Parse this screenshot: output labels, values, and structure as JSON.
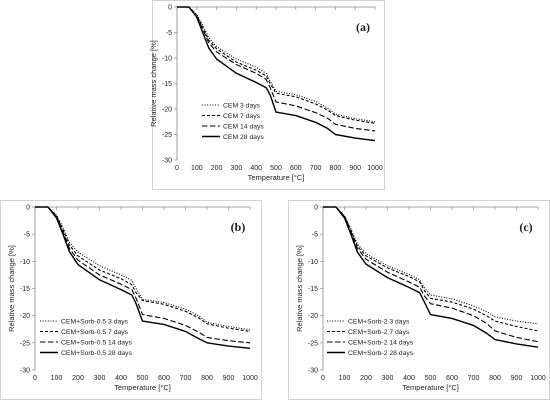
{
  "chart_data": [
    {
      "type": "line",
      "panel_label": "(a)",
      "xlabel": "Temperature [°C]",
      "ylabel": "Relative mass change [%]",
      "xlim": [
        0,
        1000
      ],
      "ylim": [
        -30,
        0
      ],
      "xticks": [
        0,
        100,
        200,
        300,
        400,
        500,
        600,
        700,
        800,
        900,
        1000
      ],
      "yticks": [
        0,
        -5,
        -10,
        -15,
        -20,
        -25,
        -30
      ],
      "grid": false,
      "legend_position": "bottom-right",
      "series": [
        {
          "name": "CEM 3 days",
          "style": "dotted",
          "x": [
            0,
            60,
            100,
            130,
            160,
            200,
            300,
            400,
            450,
            470,
            500,
            600,
            700,
            760,
            800,
            900,
            1000
          ],
          "y": [
            0,
            0,
            -1.5,
            -3.5,
            -6,
            -7.8,
            -10.2,
            -11.8,
            -13,
            -14.5,
            -16.5,
            -17.2,
            -18.5,
            -19.8,
            -21,
            -21.9,
            -22.5
          ]
        },
        {
          "name": "CEM 7 days",
          "style": "short-dash",
          "x": [
            0,
            60,
            100,
            130,
            160,
            200,
            300,
            400,
            450,
            470,
            500,
            600,
            700,
            760,
            800,
            900,
            1000
          ],
          "y": [
            0,
            0,
            -1.6,
            -4,
            -6.5,
            -8.2,
            -10.8,
            -12.4,
            -13.5,
            -15,
            -16.9,
            -17.6,
            -19,
            -20.2,
            -21.3,
            -22.2,
            -22.8
          ]
        },
        {
          "name": "CEM 14 days",
          "style": "long-dash",
          "x": [
            0,
            60,
            100,
            130,
            160,
            200,
            300,
            400,
            450,
            470,
            500,
            600,
            700,
            760,
            800,
            900,
            1000
          ],
          "y": [
            0,
            0,
            -1.8,
            -4.3,
            -7,
            -8.8,
            -11.3,
            -13,
            -14.2,
            -15.8,
            -18.6,
            -19.4,
            -20.7,
            -21.8,
            -23,
            -23.8,
            -24.3
          ]
        },
        {
          "name": "CEM 28 days",
          "style": "solid",
          "x": [
            0,
            60,
            100,
            130,
            160,
            200,
            300,
            400,
            450,
            470,
            500,
            600,
            700,
            760,
            800,
            900,
            1000
          ],
          "y": [
            0,
            0,
            -2,
            -5,
            -8,
            -10.2,
            -13,
            -14.8,
            -15.8,
            -17.2,
            -20.6,
            -21.3,
            -22.6,
            -23.8,
            -25,
            -25.7,
            -26.2
          ]
        }
      ]
    },
    {
      "type": "line",
      "panel_label": "(b)",
      "xlabel": "Temperature [°C]",
      "ylabel": "Relative mass change [%]",
      "xlim": [
        0,
        1000
      ],
      "ylim": [
        -30,
        0
      ],
      "xticks": [
        0,
        100,
        200,
        300,
        400,
        500,
        600,
        700,
        800,
        900,
        1000
      ],
      "yticks": [
        0,
        -5,
        -10,
        -15,
        -20,
        -25,
        -30
      ],
      "grid": false,
      "legend_position": "bottom-left",
      "series": [
        {
          "name": "CEM+Sorb-0.5 3 days",
          "style": "dotted",
          "x": [
            0,
            60,
            100,
            130,
            160,
            200,
            300,
            400,
            450,
            470,
            500,
            600,
            700,
            760,
            800,
            900,
            1000
          ],
          "y": [
            0,
            0,
            -1.5,
            -3.8,
            -6.5,
            -8.3,
            -10.8,
            -12.5,
            -13.5,
            -15,
            -17,
            -17.6,
            -18.8,
            -20,
            -21.2,
            -22,
            -22.6
          ]
        },
        {
          "name": "CEM+Sorb-0.5 7 days",
          "style": "short-dash",
          "x": [
            0,
            60,
            100,
            130,
            160,
            200,
            300,
            400,
            450,
            470,
            500,
            600,
            700,
            760,
            800,
            900,
            1000
          ],
          "y": [
            0,
            0,
            -1.6,
            -4.2,
            -7,
            -9,
            -11.6,
            -13.2,
            -14.3,
            -15.8,
            -17.2,
            -17.9,
            -19.2,
            -20.4,
            -21.5,
            -22.3,
            -22.9
          ]
        },
        {
          "name": "CEM+Sorb-0.5 14 days",
          "style": "long-dash",
          "x": [
            0,
            60,
            100,
            130,
            160,
            200,
            300,
            400,
            450,
            470,
            500,
            600,
            700,
            760,
            800,
            900,
            1000
          ],
          "y": [
            0,
            0,
            -1.8,
            -4.6,
            -7.6,
            -9.8,
            -12.5,
            -14.2,
            -15.2,
            -16.8,
            -19.8,
            -20.5,
            -21.8,
            -23,
            -24,
            -24.6,
            -25
          ]
        },
        {
          "name": "CEM+Sorb-0.5 28 days",
          "style": "solid",
          "x": [
            0,
            60,
            100,
            130,
            160,
            200,
            300,
            400,
            450,
            470,
            500,
            600,
            700,
            760,
            800,
            900,
            1000
          ],
          "y": [
            0,
            0,
            -2,
            -5,
            -8.2,
            -10.6,
            -13.4,
            -15.2,
            -16.2,
            -17.8,
            -21,
            -21.6,
            -22.9,
            -24.2,
            -25,
            -25.6,
            -26
          ]
        }
      ]
    },
    {
      "type": "line",
      "panel_label": "(c)",
      "xlabel": "Temperature [°C]",
      "ylabel": "Relative mass change [%]",
      "xlim": [
        0,
        1000
      ],
      "ylim": [
        -30,
        0
      ],
      "xticks": [
        0,
        100,
        200,
        300,
        400,
        500,
        600,
        700,
        800,
        900,
        1000
      ],
      "yticks": [
        0,
        -5,
        -10,
        -15,
        -20,
        -25,
        -30
      ],
      "grid": false,
      "legend_position": "bottom-left",
      "series": [
        {
          "name": "CEM+Sorb-2 3 days",
          "style": "dotted",
          "x": [
            0,
            60,
            100,
            130,
            160,
            200,
            300,
            400,
            450,
            470,
            500,
            600,
            700,
            760,
            800,
            900,
            1000
          ],
          "y": [
            0,
            0,
            -1.6,
            -4,
            -6.8,
            -8.6,
            -10.8,
            -12.4,
            -13.4,
            -14.8,
            -16.2,
            -16.9,
            -18.2,
            -19.2,
            -20.2,
            -21,
            -21.5
          ]
        },
        {
          "name": "CEM+Sorb-2 7 days",
          "style": "short-dash",
          "x": [
            0,
            60,
            100,
            130,
            160,
            200,
            300,
            400,
            450,
            470,
            500,
            600,
            700,
            760,
            800,
            900,
            1000
          ],
          "y": [
            0,
            0,
            -1.7,
            -4.3,
            -7.2,
            -9,
            -11.2,
            -12.8,
            -13.8,
            -15.3,
            -16.8,
            -17.5,
            -18.8,
            -20,
            -21,
            -22,
            -22.8
          ]
        },
        {
          "name": "CEM+Sorb-2 14 days",
          "style": "long-dash",
          "x": [
            0,
            60,
            100,
            130,
            160,
            200,
            300,
            400,
            450,
            470,
            500,
            600,
            700,
            760,
            800,
            900,
            1000
          ],
          "y": [
            0,
            0,
            -1.8,
            -4.6,
            -7.6,
            -9.6,
            -12,
            -13.8,
            -14.8,
            -16.3,
            -17.8,
            -18.6,
            -20,
            -21.4,
            -22.8,
            -24,
            -24.8
          ]
        },
        {
          "name": "CEM+Sorb-2 28 days",
          "style": "solid",
          "x": [
            0,
            60,
            100,
            130,
            160,
            200,
            300,
            400,
            450,
            470,
            500,
            600,
            700,
            760,
            800,
            900,
            1000
          ],
          "y": [
            0,
            0,
            -2,
            -5,
            -8.3,
            -10.5,
            -13,
            -14.8,
            -15.8,
            -17.4,
            -19.8,
            -20.5,
            -21.8,
            -23.2,
            -24.4,
            -25.2,
            -25.8
          ]
        }
      ]
    }
  ]
}
